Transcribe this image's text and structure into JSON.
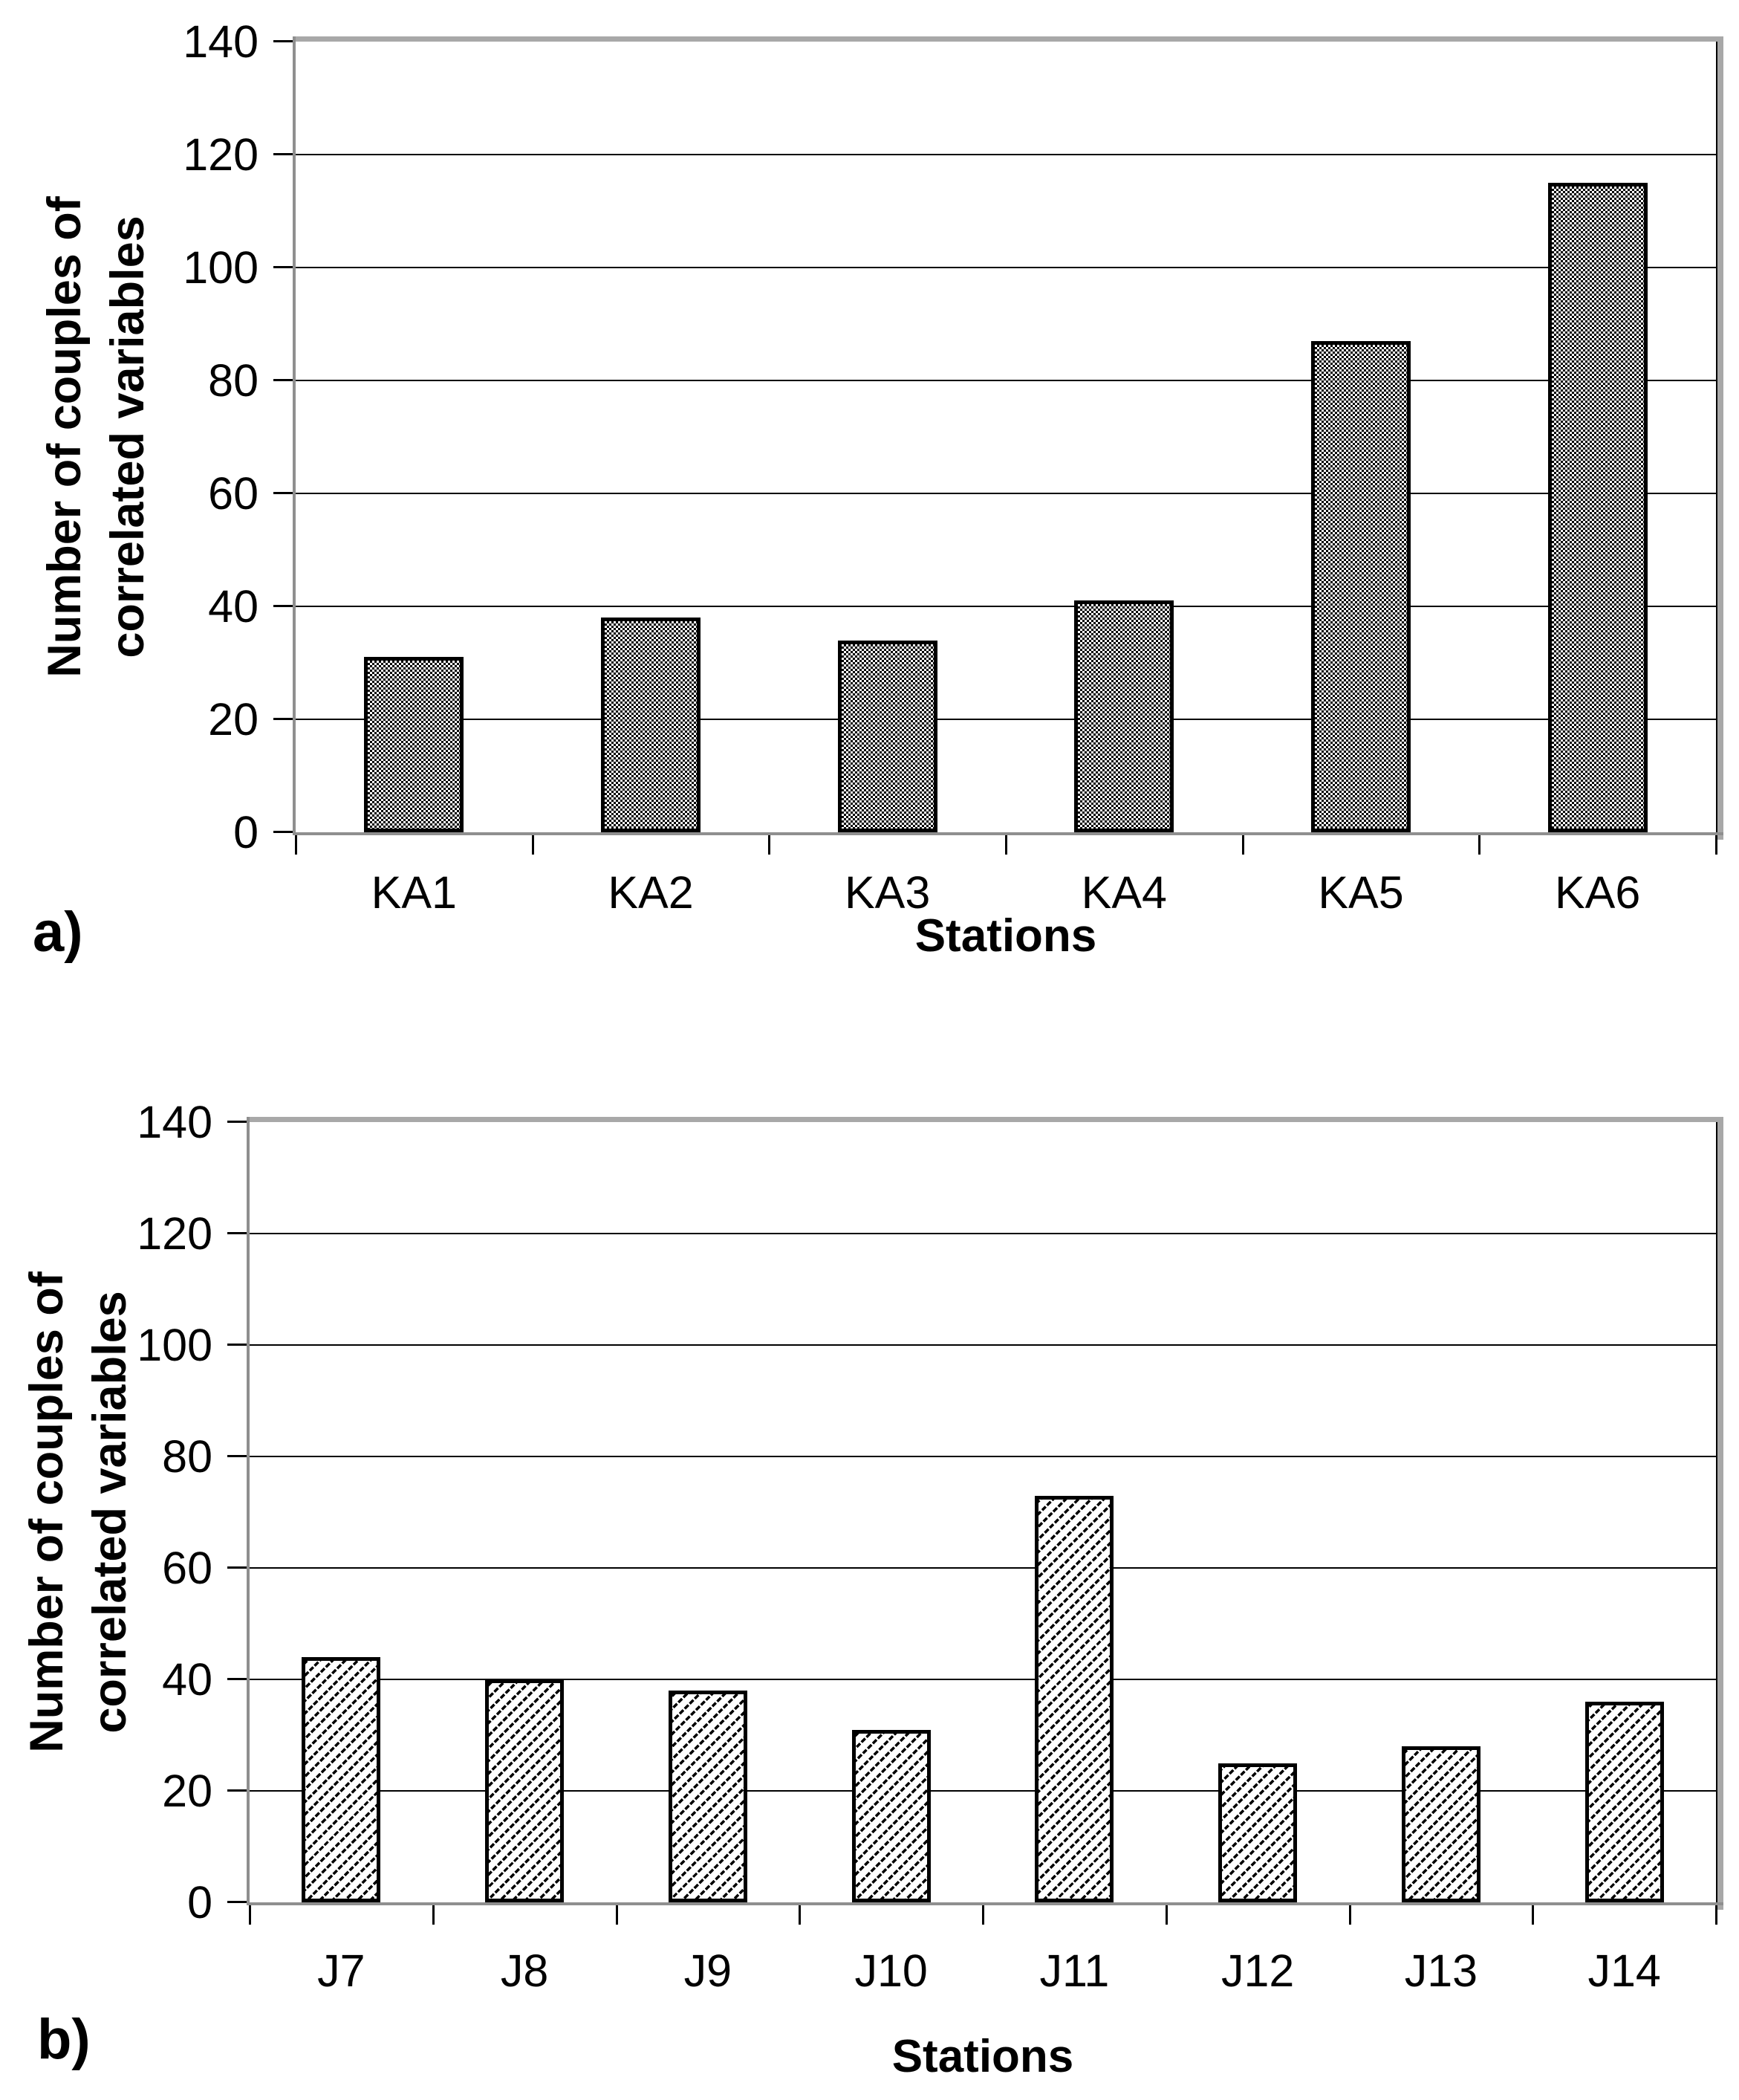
{
  "figure": {
    "background": "#ffffff",
    "text_color": "#000000",
    "frame_color": "#a8a8a8",
    "axis_color": "#8f8f8f",
    "gridline_color": "#000000",
    "bar_border_color": "#000000"
  },
  "chart_data": [
    {
      "id": "a",
      "type": "bar",
      "panel_label": "a)",
      "title": "",
      "xlabel": "Stations",
      "ylabel_lines": [
        "Number of couples of",
        "correlated variables"
      ],
      "categories": [
        "KA1",
        "KA2",
        "KA3",
        "KA4",
        "KA5",
        "KA6"
      ],
      "values": [
        31,
        38,
        34,
        41,
        87,
        115
      ],
      "ylim": [
        0,
        140
      ],
      "yticks": [
        0,
        20,
        40,
        60,
        80,
        100,
        120,
        140
      ],
      "grid": true,
      "legend": false,
      "pattern": "checkerboard"
    },
    {
      "id": "b",
      "type": "bar",
      "panel_label": "b)",
      "title": "",
      "xlabel": "Stations",
      "ylabel_lines": [
        "Number of couples of",
        "correlated variables"
      ],
      "categories": [
        "J7",
        "J8",
        "J9",
        "J10",
        "J11",
        "J12",
        "J13",
        "J14"
      ],
      "values": [
        44,
        40,
        38,
        31,
        73,
        25,
        28,
        36
      ],
      "ylim": [
        0,
        140
      ],
      "yticks": [
        0,
        20,
        40,
        60,
        80,
        100,
        120,
        140
      ],
      "grid": true,
      "legend": false,
      "pattern": "diagonal-dash"
    }
  ]
}
